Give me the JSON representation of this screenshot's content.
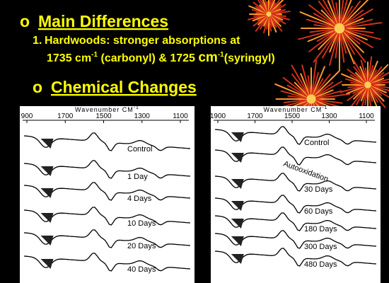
{
  "heading1": {
    "bullet": "o",
    "text": "Main Differences"
  },
  "point1": {
    "number": "1.",
    "text": "Hardwoods: stronger absorptions at",
    "line2": [
      "1735 cm",
      "-1",
      " (carbonyl) & 1725 ",
      "cm",
      "-1",
      "(syringyl)"
    ]
  },
  "heading2": {
    "bullet": "o",
    "text": "Chemical Changes"
  },
  "panels": [
    {
      "axis_title": "Wavenumber  CM",
      "axis_sup": "-1",
      "ticks": [
        "900",
        "1700",
        "1500",
        "1300",
        "1100"
      ],
      "labels": [
        "Control",
        "1 Day",
        "4 Days",
        "10 Days",
        "20 Days",
        "40 Days"
      ]
    },
    {
      "axis_title": "Wavenumber  CM",
      "axis_sup": "-1",
      "ticks": [
        "1900",
        "1700",
        "1500",
        "1300",
        "1100"
      ],
      "labels": [
        "Control",
        "Autooxidation",
        "30 Days",
        "60 Days",
        "180 Days",
        "300 Days",
        "480 Days"
      ]
    }
  ]
}
